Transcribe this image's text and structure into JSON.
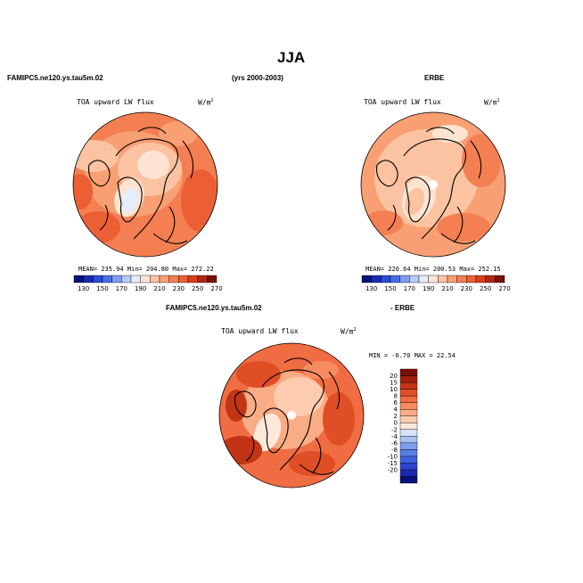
{
  "page": {
    "season": "JJA",
    "model_label": "FAMIPC5.ne120.ys.tau5m.02",
    "years_label": "(yrs 2000-2003)",
    "obs_label": "ERBE",
    "diff_model_label": "FAMIPC5.ne120.ys.tau5m.02",
    "diff_obs_label": "- ERBE"
  },
  "panels": [
    {
      "name": "model",
      "variable": "TOA upward LW flux",
      "units_base": "W/m",
      "units_exp": "2",
      "stats_text": "MEAN=  235.94   Min=  204.80   Max=  272.22"
    },
    {
      "name": "obs",
      "variable": "TOA upward LW flux",
      "units_base": "W/m",
      "units_exp": "2",
      "stats_text": "MEAN=  226.64   Min=  200.53   Max=  252.15"
    },
    {
      "name": "difference",
      "variable": "TOA upward LW flux",
      "units_base": "W/m",
      "units_exp": "2",
      "stats_text": "MIN =  -0.70  MAX =   22.54"
    }
  ],
  "colors": {
    "abs_scale": [
      "#08107a",
      "#1a2ab0",
      "#2c4ad6",
      "#4a6ee6",
      "#7e9cf0",
      "#b6cbf6",
      "#e4edfb",
      "#fde4d2",
      "#fbc3a2",
      "#f8a074",
      "#f47f52",
      "#ec5f34",
      "#d8401e",
      "#b02810",
      "#7a1006"
    ],
    "diff_scale": [
      "#08107a",
      "#1a2ab0",
      "#2c44d0",
      "#3f60e0",
      "#5a7ee8",
      "#7e9cf0",
      "#a8c0f4",
      "#d4e2f8",
      "#fde8da",
      "#fccbb0",
      "#f9ac86",
      "#f68c62",
      "#f06c42",
      "#e04e26",
      "#c23414",
      "#a02010",
      "#7a1006"
    ]
  },
  "chart_data": [
    {
      "type": "heatmap",
      "title": "TOA upward LW flux",
      "subtitle": "FAMIPC5.ne120.ys.tau5m.02",
      "units": "W/m2",
      "projection": "north polar stereographic",
      "mean": 235.94,
      "min": 204.8,
      "max": 272.22,
      "colorbar_levels": [
        130,
        150,
        170,
        190,
        210,
        230,
        250,
        270
      ]
    },
    {
      "type": "heatmap",
      "title": "TOA upward LW flux",
      "subtitle": "ERBE",
      "units": "W/m2",
      "projection": "north polar stereographic",
      "mean": 226.64,
      "min": 200.53,
      "max": 252.15,
      "colorbar_levels": [
        130,
        150,
        170,
        190,
        210,
        230,
        250,
        270
      ]
    },
    {
      "type": "heatmap",
      "title": "TOA upward LW flux",
      "subtitle": "FAMIPC5.ne120.ys.tau5m.02 - ERBE",
      "units": "W/m2",
      "projection": "north polar stereographic",
      "min": -0.7,
      "max": 22.54,
      "colorbar_levels": [
        "20",
        "15",
        "10",
        "8",
        "6",
        "4",
        "2",
        "0",
        "-2",
        "-4",
        "-6",
        "-8",
        "-10",
        "-15",
        "-20"
      ]
    }
  ]
}
